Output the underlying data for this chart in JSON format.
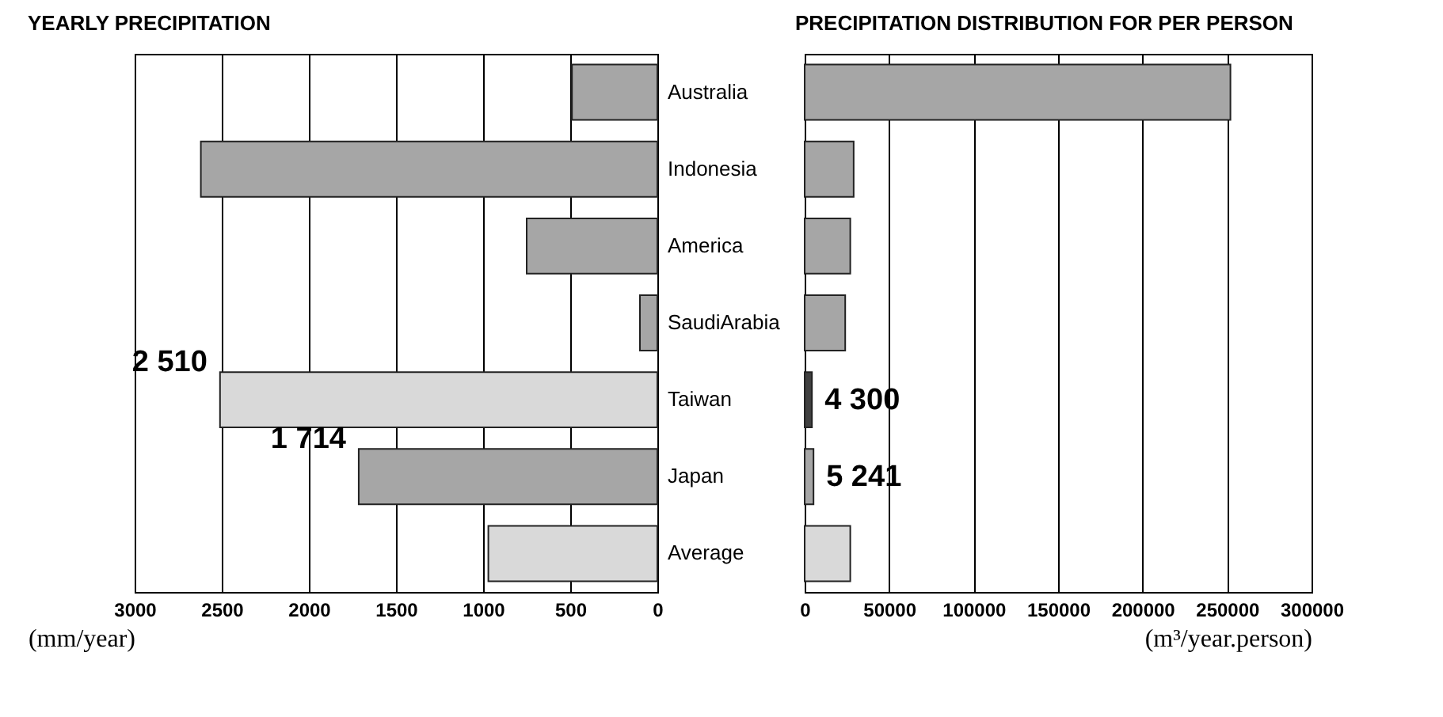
{
  "chart_data": [
    {
      "type": "bar",
      "orientation": "horizontal",
      "title": "YEARLY PRECIPITATION",
      "xlabel": "(mm/year)",
      "categories": [
        "Australia",
        "Indonesia",
        "America",
        "SaudiArabia",
        "Taiwan",
        "Japan",
        "Average"
      ],
      "values": [
        490,
        2620,
        750,
        100,
        2510,
        1714,
        970
      ],
      "colors": [
        "#a6a6a6",
        "#a6a6a6",
        "#a6a6a6",
        "#a6a6a6",
        "#d9d9d9",
        "#a6a6a6",
        "#d9d9d9"
      ],
      "value_labels": [
        null,
        null,
        null,
        null,
        "2 510",
        "1 714",
        null
      ],
      "xlim": [
        3000,
        0
      ],
      "xticks": [
        3000,
        2500,
        2000,
        1500,
        1000,
        500,
        0
      ],
      "grid": "x"
    },
    {
      "type": "bar",
      "orientation": "horizontal",
      "title": "PRECIPITATION DISTRIBUTION FOR PER PERSON",
      "xlabel": "(m³/year.person)",
      "categories": [
        "Australia",
        "Indonesia",
        "America",
        "SaudiArabia",
        "Taiwan",
        "Japan",
        "Average"
      ],
      "values": [
        252000,
        29000,
        27000,
        24000,
        4300,
        5241,
        27000
      ],
      "colors": [
        "#a6a6a6",
        "#a6a6a6",
        "#a6a6a6",
        "#a6a6a6",
        "#404040",
        "#a6a6a6",
        "#d9d9d9"
      ],
      "value_labels": [
        null,
        null,
        null,
        null,
        "4 300",
        "5 241",
        null
      ],
      "xlim": [
        0,
        300000
      ],
      "xticks": [
        0,
        50000,
        100000,
        150000,
        200000,
        250000,
        300000
      ],
      "grid": "x",
      "tick_labels": "x"
    }
  ]
}
